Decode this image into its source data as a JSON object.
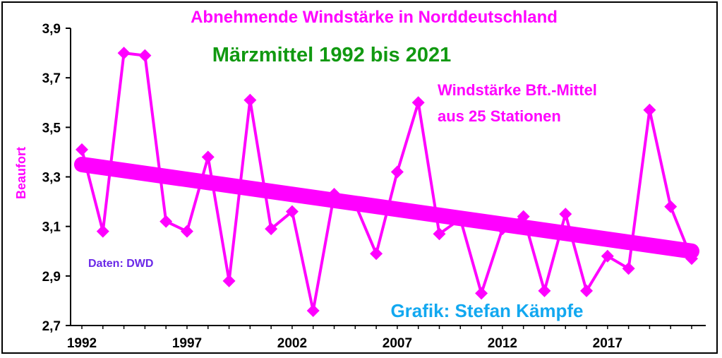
{
  "chart_data": {
    "type": "line",
    "title": "Abnehmende  Windstärke in Norddeutschland",
    "subtitle": "Märzmittel 1992 bis 2021",
    "series_label_lines": [
      "Windstärke Bft.-Mittel",
      "aus 25 Stationen"
    ],
    "source_note": "Daten: DWD",
    "credit": "Grafik: Stefan Kämpfe",
    "ylabel": "Beaufort",
    "xlabel": "",
    "ylim": [
      2.7,
      3.9
    ],
    "ytick_labels": [
      "3,9",
      "3,7",
      "3,5",
      "3,3",
      "3,1",
      "2,9",
      "2,7"
    ],
    "ytick_values": [
      3.9,
      3.7,
      3.5,
      3.3,
      3.1,
      2.9,
      2.7
    ],
    "xtick_labels": [
      "1992",
      "1997",
      "2002",
      "2007",
      "2012",
      "2017"
    ],
    "xtick_values": [
      1992,
      1997,
      2002,
      2007,
      2012,
      2017
    ],
    "xlim": [
      1992,
      2021
    ],
    "grid": false,
    "series": [
      {
        "values": [
          [
            1992,
            3.41
          ],
          [
            1993,
            3.08
          ],
          [
            1994,
            3.8
          ],
          [
            1995,
            3.79
          ],
          [
            1996,
            3.12
          ],
          [
            1997,
            3.08
          ],
          [
            1998,
            3.38
          ],
          [
            1999,
            2.88
          ],
          [
            2000,
            3.61
          ],
          [
            2001,
            3.09
          ],
          [
            2002,
            3.16
          ],
          [
            2003,
            2.76
          ],
          [
            2004,
            3.23
          ],
          [
            2005,
            3.19
          ],
          [
            2006,
            2.99
          ],
          [
            2007,
            3.32
          ],
          [
            2008,
            3.6
          ],
          [
            2009,
            3.07
          ],
          [
            2010,
            3.13
          ],
          [
            2011,
            2.83
          ],
          [
            2012,
            3.09
          ],
          [
            2013,
            3.14
          ],
          [
            2014,
            2.84
          ],
          [
            2015,
            3.15
          ],
          [
            2016,
            2.84
          ],
          [
            2017,
            2.98
          ],
          [
            2018,
            2.93
          ],
          [
            2019,
            3.57
          ],
          [
            2020,
            3.18
          ],
          [
            2021,
            2.97
          ]
        ]
      }
    ],
    "trend": {
      "start": [
        1992,
        3.35
      ],
      "end": [
        2021,
        3.0
      ]
    },
    "colors": {
      "series": "#ff00ff",
      "title": "#ff00ff",
      "subtitle": "#119911",
      "source_note": "#6a28e8",
      "credit": "#12a8f0",
      "axis": "#000000"
    }
  }
}
